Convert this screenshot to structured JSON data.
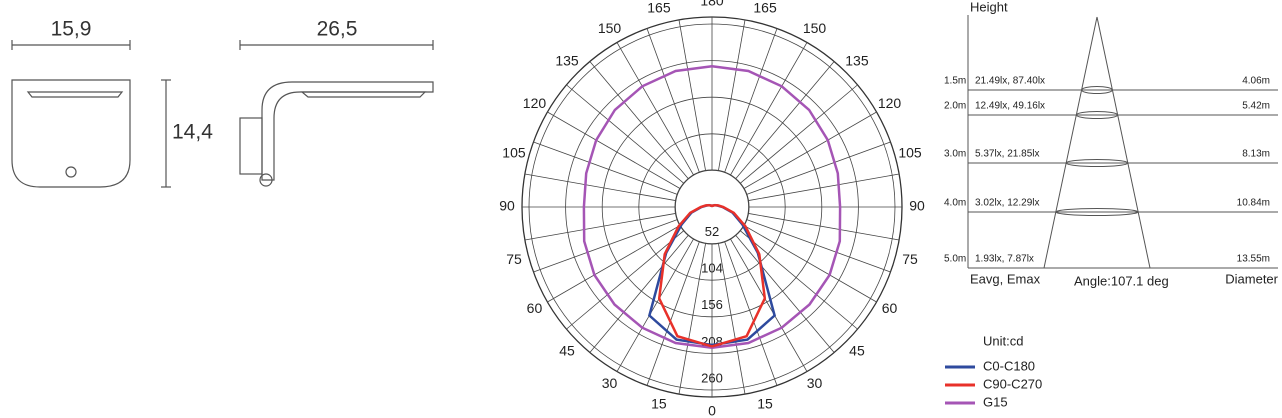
{
  "dimensions": {
    "width": "15,9",
    "depth": "26,5",
    "height": "14,4"
  },
  "polar": {
    "unit": "Unit:cd",
    "angles": [
      0,
      15,
      30,
      45,
      60,
      75,
      90,
      105,
      120,
      135,
      150,
      165,
      180
    ],
    "rings": [
      52,
      104,
      156,
      208,
      260
    ],
    "rlim": [
      0,
      260
    ],
    "series": [
      {
        "name": "C0-C180",
        "color": "#2e4a9e",
        "values": [
          196,
          195,
          178,
          92,
          50,
          30,
          15,
          8,
          5,
          3,
          2,
          2,
          2
        ]
      },
      {
        "name": "C90-C270",
        "color": "#e8312a",
        "values": [
          198,
          190,
          150,
          95,
          55,
          32,
          16,
          9,
          5,
          3,
          2,
          2,
          2
        ]
      },
      {
        "name": "G15",
        "color": "#a555b5",
        "values": [
          200,
          200,
          198,
          196,
          193,
          188,
          182,
          185,
          190,
          195,
          198,
          200,
          200
        ]
      }
    ]
  },
  "cone": {
    "title": "Height",
    "rows": [
      {
        "height": "1.5m",
        "values": "21.49lx,  87.40lx",
        "diameter": "4.06m"
      },
      {
        "height": "2.0m",
        "values": "12.49lx,  49.16lx",
        "diameter": "5.42m"
      },
      {
        "height": "3.0m",
        "values": "5.37lx,  21.85lx",
        "diameter": "8.13m"
      },
      {
        "height": "4.0m",
        "values": "3.02lx,  12.29lx",
        "diameter": "10.84m"
      },
      {
        "height": "5.0m",
        "values": "1.93lx,  7.87lx",
        "diameter": "13.55m"
      }
    ],
    "footer_left": "Eavg,  Emax",
    "angle": "Angle:107.1 deg",
    "footer_right": "Diameter"
  }
}
